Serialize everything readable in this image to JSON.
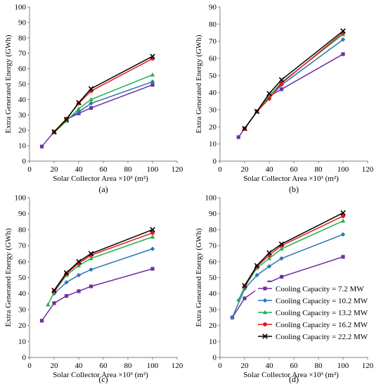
{
  "legend": {
    "entries": [
      {
        "label": "Cooling Capacity = 7.2 MW",
        "color": "#7030a0",
        "marker": "square"
      },
      {
        "label": "Cooling Capacity = 10.2 MW",
        "color": "#2e75b6",
        "marker": "diamond"
      },
      {
        "label": "Cooling Capacity = 13.2 MW",
        "color": "#22b14c",
        "marker": "triangle"
      },
      {
        "label": "Cooling Capacity = 16.2 MW",
        "color": "#e8151b",
        "marker": "circle"
      },
      {
        "label": "Cooling Capacity = 22.2 MW",
        "color": "#000000",
        "marker": "cross"
      }
    ],
    "placement": "inside panel (d), lower-right"
  },
  "chart_data": [
    {
      "type": "line",
      "panel_label": "(a)",
      "xlabel": "Solar Collector Area ×10³  (m²)",
      "ylabel": "Extra Generated Energy (GWh)",
      "xlim": [
        0,
        120
      ],
      "ylim": [
        0,
        100
      ],
      "xticks": [
        "0",
        "20",
        "40",
        "60",
        "80",
        "100",
        "120"
      ],
      "yticks": [
        "0",
        "10",
        "20",
        "30",
        "40",
        "50",
        "60",
        "70",
        "80",
        "90",
        "100"
      ],
      "grid": false,
      "x": [
        10,
        20,
        30,
        40,
        50,
        100
      ],
      "series": [
        {
          "name": "Cooling Capacity = 7.2 MW",
          "values": [
            9.5,
            19,
            27,
            31,
            34.5,
            49.5
          ]
        },
        {
          "name": "Cooling Capacity = 10.2 MW",
          "values": [
            null,
            19,
            27,
            32,
            37.5,
            51.5
          ]
        },
        {
          "name": "Cooling Capacity = 13.2 MW",
          "values": [
            null,
            18.5,
            26,
            34,
            40,
            56
          ]
        },
        {
          "name": "Cooling Capacity = 16.2 MW",
          "values": [
            null,
            19,
            27.5,
            37.5,
            45.5,
            66.5
          ]
        },
        {
          "name": "Cooling Capacity = 22.2 MW",
          "values": [
            null,
            19,
            27,
            38,
            47,
            68
          ]
        }
      ]
    },
    {
      "type": "line",
      "panel_label": "(b)",
      "xlabel": "Solar Collector Area ×10³  (m²)",
      "ylabel": "Extra Generated Energy (GWh)",
      "xlim": [
        0,
        120
      ],
      "ylim": [
        0,
        90
      ],
      "xticks": [
        "0",
        "20",
        "40",
        "60",
        "80",
        "100",
        "120"
      ],
      "yticks": [
        "0",
        "10",
        "20",
        "30",
        "40",
        "50",
        "60",
        "70",
        "80",
        "90"
      ],
      "grid": false,
      "x": [
        15,
        20,
        30,
        40,
        50,
        100
      ],
      "series": [
        {
          "name": "Cooling Capacity = 7.2 MW",
          "values": [
            14,
            19,
            29,
            38,
            42,
            62.5
          ]
        },
        {
          "name": "Cooling Capacity = 10.2 MW",
          "values": [
            null,
            19,
            29,
            37,
            44.5,
            71
          ]
        },
        {
          "name": "Cooling Capacity = 13.2 MW",
          "values": [
            null,
            19,
            29,
            38,
            46,
            74
          ]
        },
        {
          "name": "Cooling Capacity = 16.2 MW",
          "values": [
            null,
            19,
            29,
            36.5,
            45.5,
            75
          ]
        },
        {
          "name": "Cooling Capacity = 22.2 MW",
          "values": [
            null,
            19,
            29,
            39.5,
            47.5,
            76
          ]
        }
      ]
    },
    {
      "type": "line",
      "panel_label": "(c)",
      "xlabel": "Solar Collector Area ×10³  (m²)",
      "ylabel": "Extra Generated Energy (GWh)",
      "xlim": [
        0,
        120
      ],
      "ylim": [
        0,
        100
      ],
      "xticks": [
        "0",
        "20",
        "40",
        "60",
        "80",
        "100",
        "120"
      ],
      "yticks": [
        "0",
        "10",
        "20",
        "30",
        "40",
        "50",
        "60",
        "70",
        "80",
        "90",
        "100"
      ],
      "grid": false,
      "x": [
        10,
        15,
        20,
        30,
        40,
        50,
        100
      ],
      "series": [
        {
          "name": "Cooling Capacity = 7.2 MW",
          "values": [
            23,
            null,
            34,
            38.5,
            41.5,
            44.5,
            55.5
          ]
        },
        {
          "name": "Cooling Capacity = 10.2 MW",
          "values": [
            null,
            null,
            40,
            47,
            51.5,
            55,
            68
          ]
        },
        {
          "name": "Cooling Capacity = 13.2 MW",
          "values": [
            null,
            33,
            41,
            51.5,
            57.5,
            62,
            75.5
          ]
        },
        {
          "name": "Cooling Capacity = 16.2 MW",
          "values": [
            null,
            null,
            41.5,
            52.5,
            59,
            64,
            78
          ]
        },
        {
          "name": "Cooling Capacity = 22.2 MW",
          "values": [
            null,
            null,
            42,
            53,
            60,
            65,
            80
          ]
        }
      ]
    },
    {
      "type": "line",
      "panel_label": "(d)",
      "xlabel": "Solar Collector Area ×10³  (m²)",
      "ylabel": "Extra Generated Energy (GWh)",
      "xlim": [
        0,
        120
      ],
      "ylim": [
        0,
        100
      ],
      "xticks": [
        "0",
        "20",
        "40",
        "60",
        "80",
        "100",
        "120"
      ],
      "yticks": [
        "0",
        "10",
        "20",
        "30",
        "40",
        "50",
        "60",
        "70",
        "80",
        "90",
        "100"
      ],
      "grid": false,
      "x": [
        10,
        15,
        20,
        30,
        40,
        50,
        100
      ],
      "series": [
        {
          "name": "Cooling Capacity = 7.2 MW",
          "values": [
            25,
            null,
            37,
            42.5,
            47,
            50.5,
            63
          ]
        },
        {
          "name": "Cooling Capacity = 10.2 MW",
          "values": [
            25,
            null,
            43,
            51.5,
            57,
            62,
            77
          ]
        },
        {
          "name": "Cooling Capacity = 13.2 MW",
          "values": [
            null,
            36,
            44,
            56,
            62,
            68,
            85.5
          ]
        },
        {
          "name": "Cooling Capacity = 16.2 MW",
          "values": [
            null,
            null,
            44.5,
            57,
            64,
            70,
            88.5
          ]
        },
        {
          "name": "Cooling Capacity = 22.2 MW",
          "values": [
            null,
            null,
            45,
            57.5,
            65.5,
            71,
            90.5
          ]
        }
      ]
    }
  ]
}
